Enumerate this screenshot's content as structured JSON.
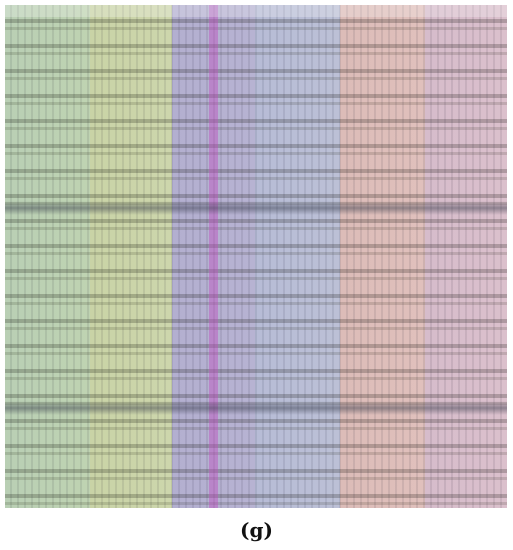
{
  "caption": "(g)"
}
